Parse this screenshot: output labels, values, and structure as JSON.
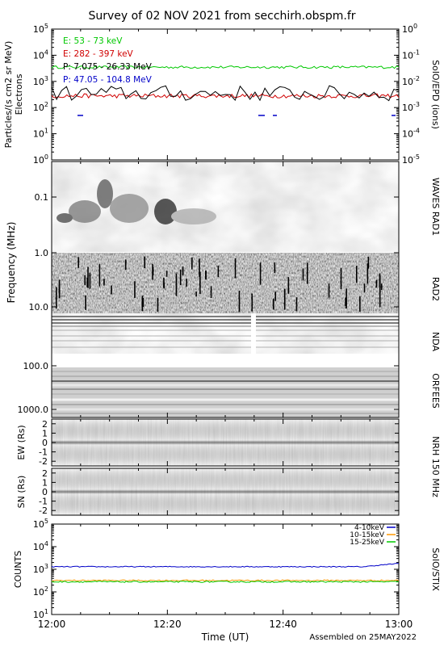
{
  "title": "Survey of 02 NOV 2021 from secchirh.obspm.fr",
  "footer": "Assembled on 25MAY2022",
  "colors": {
    "green": "#00c800",
    "red": "#d00000",
    "black": "#000000",
    "blue": "#0000c8",
    "orange": "#ff9900"
  },
  "x_axis": {
    "label": "Time (UT)",
    "ticks": [
      "12:00",
      "12:20",
      "12:40",
      "13:00"
    ],
    "tick_minutes": [
      0,
      20,
      40,
      60
    ]
  },
  "chart_data": [
    {
      "type": "line",
      "panel": "epd",
      "right_label": "SolO/EPD (ions)",
      "ylabel": "Particles/(s cm2 sr MeV)",
      "ylabel2": "Electrons",
      "y_scale": "log",
      "ylim": [
        1,
        100000
      ],
      "y_ticks": [
        "10^0",
        "10^1",
        "10^2",
        "10^3",
        "10^4",
        "10^5"
      ],
      "y2_ticks": [
        "10^-5",
        "10^-4",
        "10^-3",
        "10^-2",
        "10^-1",
        "10^0"
      ],
      "series": [
        {
          "name": "E: 53 - 73 keV",
          "color": "#00c800",
          "level": 3500,
          "jitter": 0.05,
          "start_minute": 0,
          "end_minute": 60
        },
        {
          "name": "E: 282 - 397 keV",
          "color": "#d00000",
          "level": 280,
          "jitter": 0.08,
          "start_minute": 0,
          "end_minute": 60
        },
        {
          "name": "P: 7.075 - 26.33 MeV",
          "color": "#000000",
          "level": 350,
          "jitter": 0.3,
          "start_minute": 0,
          "end_minute": 60
        },
        {
          "name": "P: 47.05 - 104.8 MeV",
          "color": "#0000c8",
          "level": 50,
          "jitter": 0,
          "start_minute": 0,
          "end_minute": 60
        }
      ]
    },
    {
      "type": "heatmap",
      "panel": "spectrogram",
      "ylabel": "Frequency (MHz)",
      "y_scale": "log",
      "ylim": [
        0.025,
        1500
      ],
      "y_ticks": [
        "0.1",
        "1.0",
        "10.0",
        "100.0",
        "1000.0"
      ],
      "right_labels": [
        "WAVES RAD1",
        "RAD2",
        "NDA",
        "ORFEES"
      ]
    },
    {
      "type": "heatmap",
      "panel": "nrh-ew",
      "ylabel": "EW (Rs)",
      "ylim": [
        -2.5,
        2.5
      ],
      "y_ticks": [
        "2",
        "1",
        "0",
        "-1",
        "-2"
      ],
      "right_label": "NRH 150 MHz"
    },
    {
      "type": "heatmap",
      "panel": "nrh-sn",
      "ylabel": "SN (Rs)",
      "ylim": [
        -2.5,
        2.5
      ],
      "y_ticks": [
        "2",
        "1",
        "0",
        "-1",
        "-2"
      ]
    },
    {
      "type": "line",
      "panel": "stix",
      "ylabel": "COUNTS",
      "right_label": "SolO/STIX",
      "y_scale": "log",
      "ylim": [
        10,
        100000
      ],
      "y_ticks": [
        "10^1",
        "10^2",
        "10^3",
        "10^4",
        "10^5"
      ],
      "series": [
        {
          "name": "4-10keV",
          "color": "#0000c8",
          "level": 1300,
          "end_level": 1800,
          "jitter": 0.02
        },
        {
          "name": "10-15keV",
          "color": "#ff9900",
          "level": 320,
          "jitter": 0.03
        },
        {
          "name": "15-25keV",
          "color": "#00c800",
          "level": 280,
          "jitter": 0.03
        }
      ]
    }
  ]
}
